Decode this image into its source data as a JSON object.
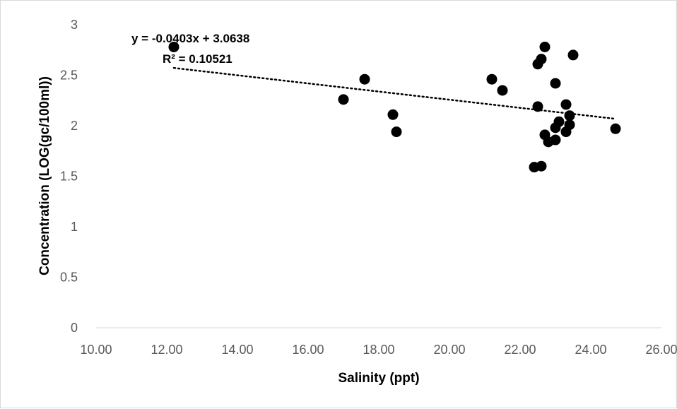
{
  "chart_data": {
    "type": "scatter",
    "title": "",
    "xlabel": "Salinity (ppt)",
    "ylabel": "Concentration (LOG(gc/100ml))",
    "xlim": [
      10,
      26
    ],
    "ylim": [
      0,
      3
    ],
    "x_ticks": [
      "10.00",
      "12.00",
      "14.00",
      "16.00",
      "18.00",
      "20.00",
      "22.00",
      "24.00",
      "26.00"
    ],
    "y_ticks": [
      "0",
      "0.5",
      "1",
      "1.5",
      "2",
      "2.5",
      "3"
    ],
    "grid": false,
    "legend": "none",
    "marker_color": "#000000",
    "points": [
      {
        "x": 12.2,
        "y": 2.78
      },
      {
        "x": 17.0,
        "y": 2.26
      },
      {
        "x": 17.6,
        "y": 2.46
      },
      {
        "x": 18.4,
        "y": 2.11
      },
      {
        "x": 18.5,
        "y": 1.94
      },
      {
        "x": 21.2,
        "y": 2.46
      },
      {
        "x": 21.5,
        "y": 2.35
      },
      {
        "x": 22.4,
        "y": 1.59
      },
      {
        "x": 22.5,
        "y": 2.61
      },
      {
        "x": 22.5,
        "y": 2.19
      },
      {
        "x": 22.6,
        "y": 2.66
      },
      {
        "x": 22.6,
        "y": 1.6
      },
      {
        "x": 22.7,
        "y": 2.78
      },
      {
        "x": 22.7,
        "y": 1.91
      },
      {
        "x": 22.8,
        "y": 1.84
      },
      {
        "x": 23.0,
        "y": 2.42
      },
      {
        "x": 23.0,
        "y": 1.98
      },
      {
        "x": 23.0,
        "y": 1.86
      },
      {
        "x": 23.1,
        "y": 2.04
      },
      {
        "x": 23.3,
        "y": 2.21
      },
      {
        "x": 23.3,
        "y": 1.94
      },
      {
        "x": 23.4,
        "y": 2.1
      },
      {
        "x": 23.4,
        "y": 2.01
      },
      {
        "x": 23.5,
        "y": 2.7
      },
      {
        "x": 24.7,
        "y": 1.97
      }
    ],
    "trendline": {
      "type": "linear",
      "slope": -0.0403,
      "intercept": 3.0638,
      "x_range": [
        12.2,
        24.7
      ],
      "style": "dotted",
      "equation_label": "y = -0.0403x + 3.0638",
      "r2_label": "R² = 0.10521"
    }
  }
}
